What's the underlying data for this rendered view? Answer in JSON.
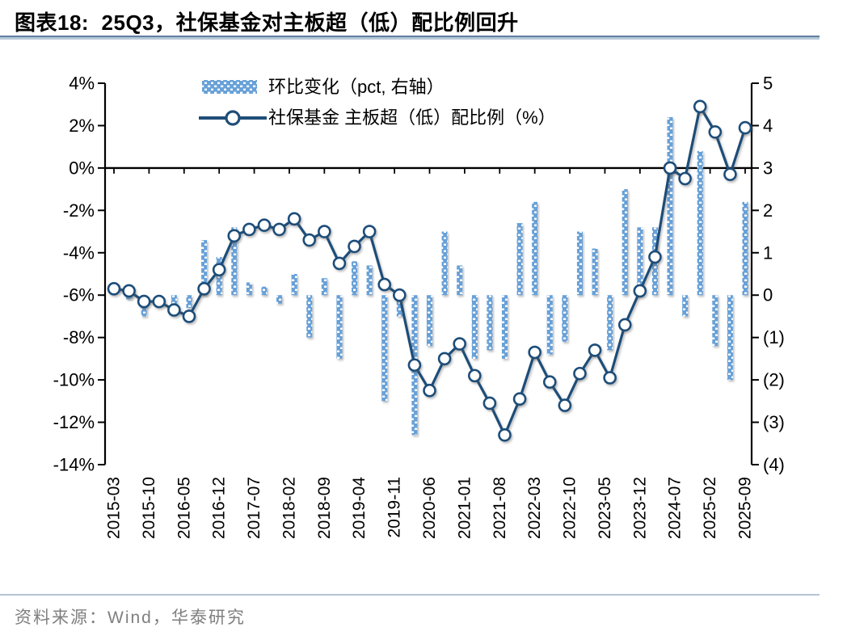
{
  "title": "图表18:  25Q3，社保基金对主板超（低）配比例回升",
  "footer": {
    "source": "资料来源：Wind，华泰研究"
  },
  "legend": [
    {
      "label": "环比变化（pct, 右轴）",
      "type": "bar"
    },
    {
      "label": "社保基金 主板超（低）配比例（%）",
      "type": "line"
    }
  ],
  "colors": {
    "bar": "#68a1d8",
    "line": "#1f4e79",
    "marker_fill": "#ffffff",
    "zero_line": "#000000",
    "axis": "#000000",
    "title_rule": "#5f7f9f",
    "footer_text": "#7f7f7f"
  },
  "chart_data": {
    "type": "bar+line",
    "title": "25Q3，社保基金对主板超（低）配比例回升",
    "x_tick_labels": [
      "2015-03",
      "2015-10",
      "2016-05",
      "2016-12",
      "2017-07",
      "2018-02",
      "2018-09",
      "2019-04",
      "2019-11",
      "2020-06",
      "2021-01",
      "2021-08",
      "2022-03",
      "2022-10",
      "2023-05",
      "2023-12",
      "2024-07",
      "2025-02",
      "2025-09"
    ],
    "left_axis": {
      "ticks": [
        "4%",
        "2%",
        "0%",
        "-2%",
        "-4%",
        "-6%",
        "-8%",
        "-10%",
        "-12%",
        "-14%"
      ],
      "min": -14,
      "max": 4
    },
    "right_axis": {
      "ticks": [
        "5",
        "4",
        "3",
        "2",
        "1",
        "0",
        "(1)",
        "(2)",
        "(3)",
        "(4)"
      ],
      "min": -4,
      "max": 5
    },
    "categories": [
      "2015-03",
      "2015-06",
      "2015-09",
      "2015-12",
      "2016-03",
      "2016-06",
      "2016-09",
      "2016-12",
      "2017-03",
      "2017-06",
      "2017-09",
      "2017-12",
      "2018-03",
      "2018-06",
      "2018-09",
      "2018-12",
      "2019-03",
      "2019-06",
      "2019-09",
      "2019-12",
      "2020-03",
      "2020-06",
      "2020-09",
      "2020-12",
      "2021-03",
      "2021-06",
      "2021-09",
      "2021-12",
      "2022-03",
      "2022-06",
      "2022-09",
      "2022-12",
      "2023-03",
      "2023-06",
      "2023-09",
      "2023-12",
      "2024-03",
      "2024-06",
      "2024-09",
      "2024-12",
      "2025-03",
      "2025-06",
      "2025-09"
    ],
    "series": [
      {
        "name": "社保基金 主板超（低）配比例（%）",
        "axis": "left",
        "type": "line",
        "values": [
          -5.7,
          -5.8,
          -6.3,
          -6.3,
          -6.7,
          -7.0,
          -5.7,
          -4.8,
          -3.2,
          -2.9,
          -2.7,
          -2.9,
          -2.4,
          -3.4,
          -3.0,
          -4.5,
          -3.7,
          -3.0,
          -5.5,
          -6.0,
          -9.3,
          -10.5,
          -9.0,
          -8.3,
          -9.8,
          -11.1,
          -12.6,
          -10.9,
          -8.7,
          -10.1,
          -11.2,
          -9.7,
          -8.6,
          -9.9,
          -7.4,
          -5.8,
          -4.2,
          0.0,
          -0.5,
          2.9,
          1.7,
          -0.3,
          1.9
        ]
      },
      {
        "name": "环比变化（pct, 右轴）",
        "axis": "right",
        "type": "bar",
        "values": [
          null,
          -0.1,
          -0.5,
          0.0,
          -0.4,
          -0.3,
          1.3,
          0.9,
          1.6,
          0.3,
          0.2,
          -0.2,
          0.5,
          -1.0,
          0.4,
          -1.5,
          0.8,
          0.7,
          -2.5,
          -0.5,
          -3.3,
          -1.2,
          1.5,
          0.7,
          -1.5,
          -1.3,
          -1.5,
          1.7,
          2.2,
          -1.4,
          -1.1,
          1.5,
          1.1,
          -1.3,
          2.5,
          1.6,
          1.6,
          4.2,
          -0.5,
          3.4,
          -1.2,
          -2.0,
          2.2
        ]
      }
    ]
  }
}
